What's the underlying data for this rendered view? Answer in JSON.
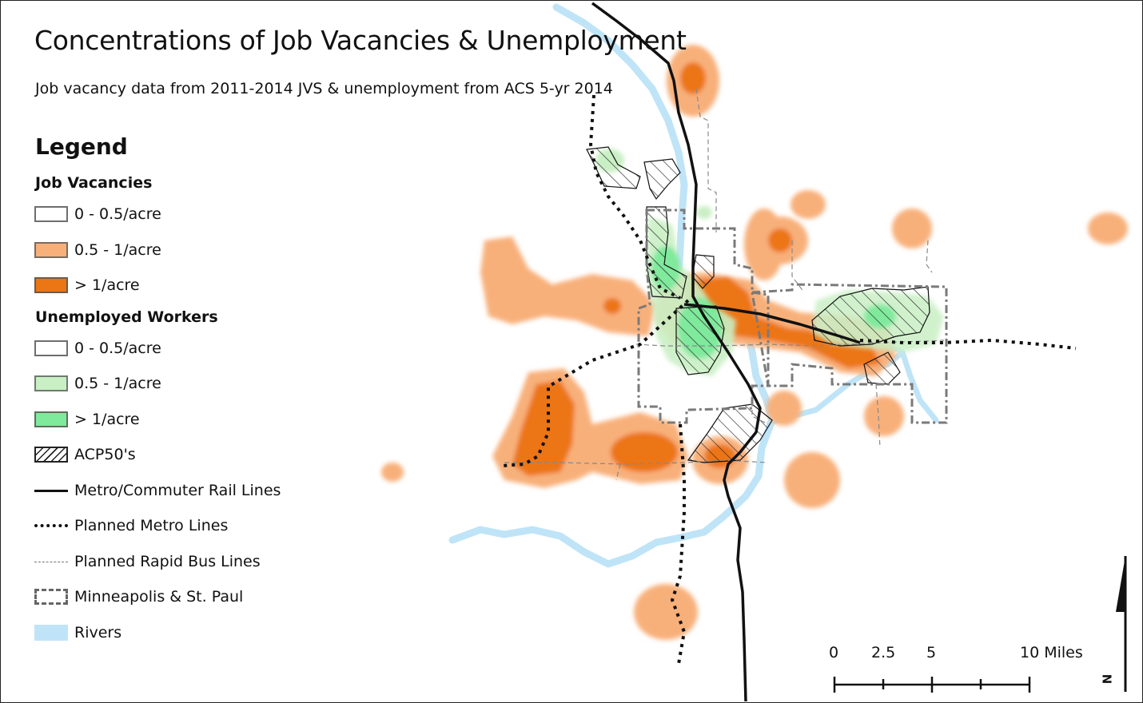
{
  "title": "Concentrations of Job Vacancies & Unemployment",
  "subtitle": "Job vacancy data from 2011-2014 JVS & unemployment from ACS 5-yr 2014",
  "legend": {
    "title": "Legend",
    "job_vacancies_heading": "Job Vacancies",
    "job_vacancies": [
      {
        "label": "0 - 0.5/acre",
        "color": "#ffffff"
      },
      {
        "label": "0.5 - 1/acre",
        "color": "#f8b07a"
      },
      {
        "label": "> 1/acre",
        "color": "#ec7514"
      }
    ],
    "unemployed_heading": "Unemployed Workers",
    "unemployed": [
      {
        "label": "0 - 0.5/acre",
        "color": "#ffffff"
      },
      {
        "label": "0.5 - 1/acre",
        "color": "#c9efc4"
      },
      {
        "label": "> 1/acre",
        "color": "#7fe99c"
      }
    ],
    "acp50_label": "ACP50's",
    "rail_label": "Metro/Commuter Rail Lines",
    "planned_metro_label": "Planned Metro Lines",
    "rapid_bus_label": "Planned Rapid Bus Lines",
    "city_label": "Minneapolis & St. Paul",
    "rivers_label": "Rivers",
    "rivers_color": "#bfe4f7"
  },
  "scale_bar": {
    "labels": [
      "0",
      "2.5",
      "5",
      "10 Miles"
    ]
  },
  "north_arrow": {
    "label": "N"
  }
}
